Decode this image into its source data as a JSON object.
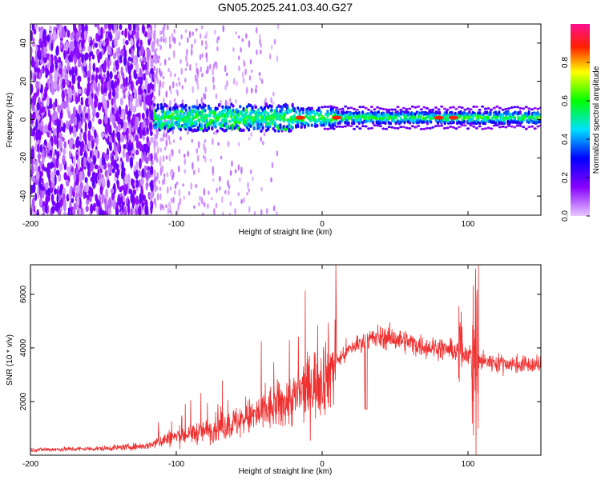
{
  "chart_data": [
    {
      "type": "heatmap",
      "title": "GN05.2025.241.03.40.G27",
      "xlabel": "Height of straight line (km)",
      "ylabel": "Frequency (Hz)",
      "xlim": [
        -200,
        150
      ],
      "ylim": [
        -50,
        50
      ],
      "xticks": [
        -200,
        -100,
        0,
        100
      ],
      "yticks": [
        -40,
        -20,
        0,
        20,
        40
      ],
      "colorbar": {
        "label": "Normalized spectral amplitude",
        "range": [
          0.0,
          1.0
        ],
        "ticks": [
          0.0,
          0.2,
          0.4,
          0.6,
          0.8
        ],
        "tick_labels": [
          "0.0",
          "0.2",
          "0.4",
          "0.6",
          "0.8"
        ]
      },
      "features": {
        "noise_region_x": [
          -200,
          -115
        ],
        "sparse_noise_region_x": [
          -115,
          -30
        ],
        "signal_band_center_hz": 0,
        "signal_band_halfwidth_hz": [
          7,
          3
        ],
        "strong_peaks_x": [
          -15,
          10,
          80,
          90
        ]
      }
    },
    {
      "type": "line",
      "xlabel": "Height of straight line (km)",
      "ylabel": "SNR (10 * v/v)",
      "xlim": [
        -200,
        150
      ],
      "ylim": [
        0,
        7100
      ],
      "xticks": [
        -200,
        -100,
        0,
        100
      ],
      "yticks": [
        2000,
        4000,
        6000
      ],
      "series": [
        {
          "name": "SNR",
          "color": "#ee3030",
          "trend_x": [
            -200,
            -150,
            -120,
            -110,
            -100,
            -80,
            -60,
            -40,
            -20,
            0,
            10,
            20,
            30,
            40,
            50,
            60,
            70,
            80,
            90,
            100,
            110,
            120,
            130,
            150
          ],
          "trend_y": [
            200,
            250,
            350,
            550,
            700,
            900,
            1200,
            1600,
            2100,
            2900,
            3500,
            4000,
            4300,
            4400,
            4350,
            4200,
            4050,
            4000,
            3900,
            3800,
            3500,
            3450,
            3400,
            3350
          ]
        }
      ]
    }
  ]
}
